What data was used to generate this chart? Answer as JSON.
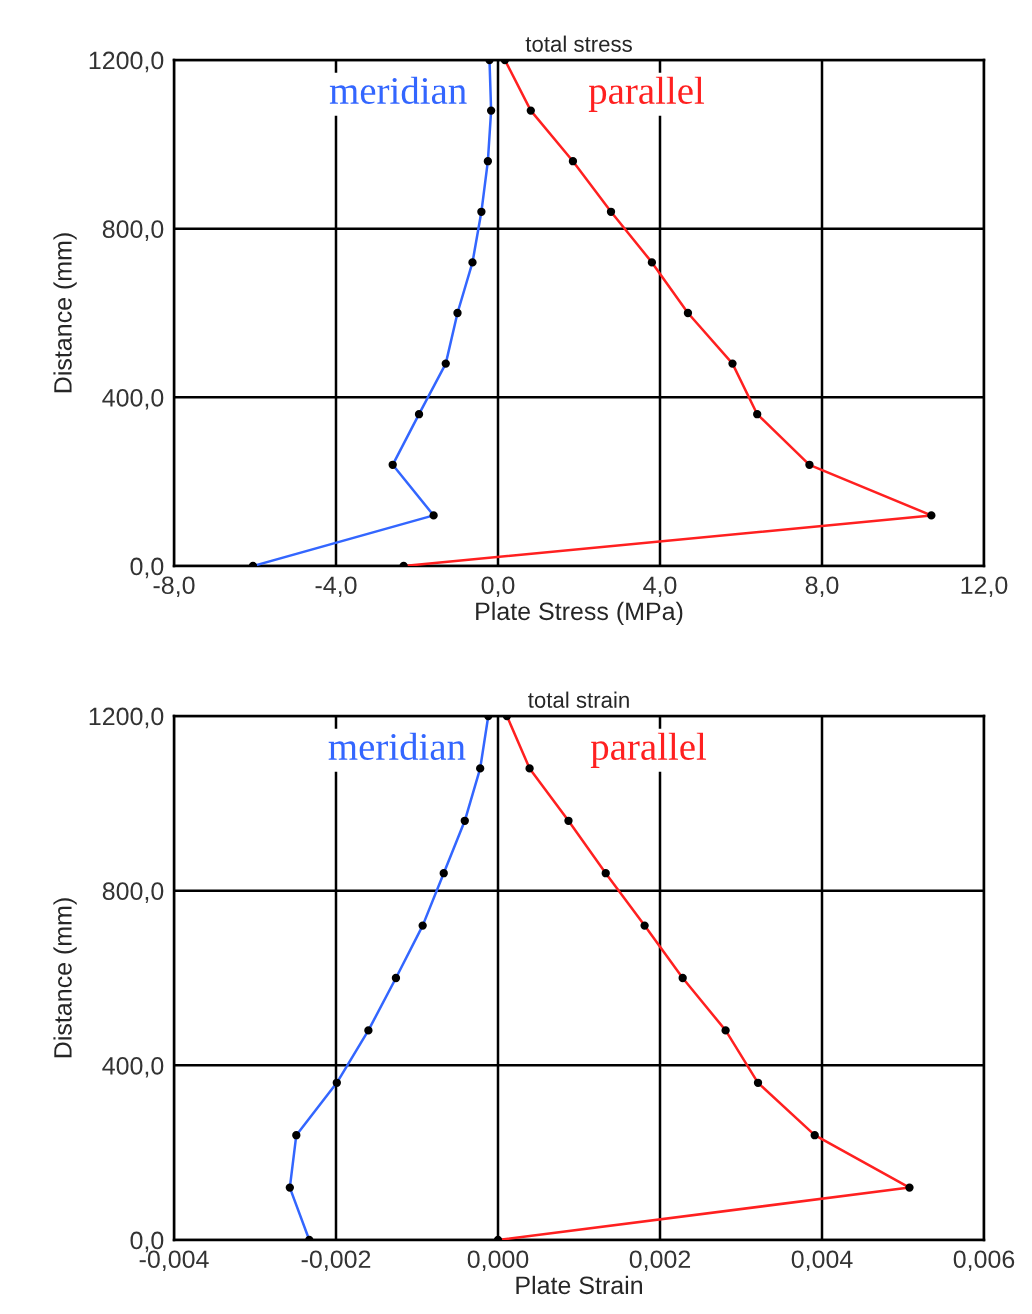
{
  "chart_data": [
    {
      "type": "line",
      "title": "total stress",
      "xlabel": "Plate Stress (MPa)",
      "ylabel": "Distance (mm)",
      "orientation": "horizontal",
      "grid": true,
      "legend": false,
      "marker": "circle",
      "line_style": "solid",
      "xlim": [
        -8,
        12
      ],
      "xticks": [
        {
          "value": -8,
          "label": "-8,0"
        },
        {
          "value": -4,
          "label": "-4,0"
        },
        {
          "value": 0,
          "label": "0,0"
        },
        {
          "value": 4,
          "label": "4,0"
        },
        {
          "value": 8,
          "label": "8,0"
        },
        {
          "value": 12,
          "label": "12,0"
        }
      ],
      "ylim": [
        0,
        1200
      ],
      "yticks": [
        {
          "value": 0,
          "label": "0,0"
        },
        {
          "value": 400,
          "label": "400,0"
        },
        {
          "value": 800,
          "label": "800,0"
        },
        {
          "value": 1200,
          "label": "1200,0"
        }
      ],
      "series": [
        {
          "name": "meridian",
          "color": "#3366ff",
          "x": [
            0,
            120,
            240,
            360,
            480,
            600,
            720,
            840,
            960,
            1080,
            1200
          ],
          "values": [
            -6.05,
            -1.59,
            -2.6,
            -1.95,
            -1.29,
            -1.0,
            -0.63,
            -0.41,
            -0.25,
            -0.17,
            -0.21
          ]
        },
        {
          "name": "parallel",
          "color": "#ff2020",
          "x": [
            0,
            120,
            240,
            360,
            480,
            600,
            720,
            840,
            960,
            1080,
            1200
          ],
          "values": [
            -2.33,
            10.7,
            7.69,
            6.4,
            5.79,
            4.69,
            3.8,
            2.79,
            1.85,
            0.81,
            0.17
          ]
        }
      ]
    },
    {
      "type": "line",
      "title": "total strain",
      "xlabel": "Plate Strain",
      "ylabel": "Distance (mm)",
      "orientation": "horizontal",
      "grid": true,
      "legend": false,
      "marker": "circle",
      "line_style": "solid",
      "xlim": [
        -0.004,
        0.006
      ],
      "xticks": [
        {
          "value": -0.004,
          "label": "-0,004"
        },
        {
          "value": -0.002,
          "label": "-0,002"
        },
        {
          "value": 0,
          "label": "0,000"
        },
        {
          "value": 0.002,
          "label": "0,002"
        },
        {
          "value": 0.004,
          "label": "0,004"
        },
        {
          "value": 0.006,
          "label": "0,006"
        }
      ],
      "ylim": [
        0,
        1200
      ],
      "yticks": [
        {
          "value": 0,
          "label": "0,0"
        },
        {
          "value": 400,
          "label": "400,0"
        },
        {
          "value": 800,
          "label": "800,0"
        },
        {
          "value": 1200,
          "label": "1200,0"
        }
      ],
      "series": [
        {
          "name": "meridian",
          "color": "#3366ff",
          "x": [
            0,
            120,
            240,
            360,
            480,
            600,
            720,
            840,
            960,
            1080,
            1200
          ],
          "values": [
            -0.00233,
            -0.00257,
            -0.00249,
            -0.00199,
            -0.0016,
            -0.00126,
            -0.00093,
            -0.00067,
            -0.00041,
            -0.00022,
            -0.00012
          ]
        },
        {
          "name": "parallel",
          "color": "#ff2020",
          "x": [
            0,
            120,
            240,
            360,
            480,
            600,
            720,
            840,
            960,
            1080,
            1200
          ],
          "values": [
            0.0,
            0.00508,
            0.00391,
            0.00321,
            0.00281,
            0.00228,
            0.00181,
            0.00133,
            0.00087,
            0.00039,
            0.00011
          ]
        }
      ]
    }
  ]
}
